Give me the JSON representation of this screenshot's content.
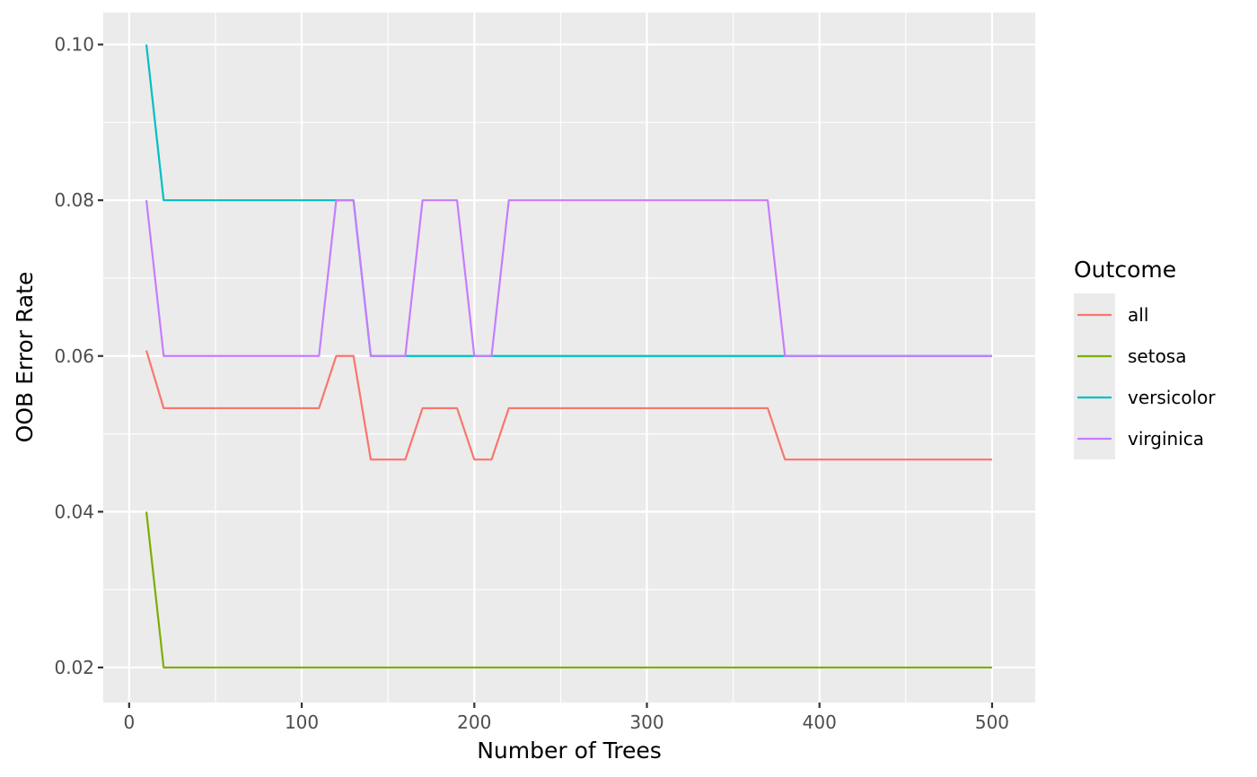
{
  "chart_data": {
    "type": "line",
    "title": "",
    "xlabel": "Number of Trees",
    "ylabel": "OOB Error Rate",
    "xlim": [
      -15,
      525
    ],
    "ylim": [
      0.0155,
      0.1041
    ],
    "x_ticks": [
      0,
      100,
      200,
      300,
      400,
      500
    ],
    "x_tick_labels": [
      "0",
      "100",
      "200",
      "300",
      "400",
      "500"
    ],
    "y_ticks": [
      0.02,
      0.04,
      0.06,
      0.08,
      0.1
    ],
    "y_tick_labels": [
      "0.02",
      "0.04",
      "0.06",
      "0.08",
      "0.10"
    ],
    "grid": true,
    "legend": {
      "title": "Outcome",
      "position": "right"
    },
    "x": [
      10,
      20,
      30,
      40,
      50,
      60,
      70,
      80,
      90,
      100,
      110,
      120,
      130,
      140,
      150,
      160,
      170,
      180,
      190,
      200,
      210,
      220,
      230,
      240,
      250,
      260,
      270,
      280,
      290,
      300,
      310,
      320,
      330,
      340,
      350,
      360,
      370,
      380,
      390,
      400,
      410,
      420,
      430,
      440,
      450,
      460,
      470,
      480,
      490,
      500
    ],
    "series": [
      {
        "name": "all",
        "color": "#F8766D",
        "values": [
          0.0607,
          0.0533,
          0.0533,
          0.0533,
          0.0533,
          0.0533,
          0.0533,
          0.0533,
          0.0533,
          0.0533,
          0.0533,
          0.06,
          0.06,
          0.0467,
          0.0467,
          0.0467,
          0.0533,
          0.0533,
          0.0533,
          0.0467,
          0.0467,
          0.0533,
          0.0533,
          0.0533,
          0.0533,
          0.0533,
          0.0533,
          0.0533,
          0.0533,
          0.0533,
          0.0533,
          0.0533,
          0.0533,
          0.0533,
          0.0533,
          0.0533,
          0.0533,
          0.0467,
          0.0467,
          0.0467,
          0.0467,
          0.0467,
          0.0467,
          0.0467,
          0.0467,
          0.0467,
          0.0467,
          0.0467,
          0.0467,
          0.0467
        ]
      },
      {
        "name": "setosa",
        "color": "#7CAE00",
        "values": [
          0.04,
          0.02,
          0.02,
          0.02,
          0.02,
          0.02,
          0.02,
          0.02,
          0.02,
          0.02,
          0.02,
          0.02,
          0.02,
          0.02,
          0.02,
          0.02,
          0.02,
          0.02,
          0.02,
          0.02,
          0.02,
          0.02,
          0.02,
          0.02,
          0.02,
          0.02,
          0.02,
          0.02,
          0.02,
          0.02,
          0.02,
          0.02,
          0.02,
          0.02,
          0.02,
          0.02,
          0.02,
          0.02,
          0.02,
          0.02,
          0.02,
          0.02,
          0.02,
          0.02,
          0.02,
          0.02,
          0.02,
          0.02,
          0.02,
          0.02
        ]
      },
      {
        "name": "versicolor",
        "color": "#00BFC4",
        "values": [
          0.1,
          0.08,
          0.08,
          0.08,
          0.08,
          0.08,
          0.08,
          0.08,
          0.08,
          0.08,
          0.08,
          0.08,
          0.08,
          0.06,
          0.06,
          0.06,
          0.06,
          0.06,
          0.06,
          0.06,
          0.06,
          0.06,
          0.06,
          0.06,
          0.06,
          0.06,
          0.06,
          0.06,
          0.06,
          0.06,
          0.06,
          0.06,
          0.06,
          0.06,
          0.06,
          0.06,
          0.06,
          0.06,
          0.06,
          0.06,
          0.06,
          0.06,
          0.06,
          0.06,
          0.06,
          0.06,
          0.06,
          0.06,
          0.06,
          0.06
        ]
      },
      {
        "name": "virginica",
        "color": "#C77CFF",
        "values": [
          0.08,
          0.06,
          0.06,
          0.06,
          0.06,
          0.06,
          0.06,
          0.06,
          0.06,
          0.06,
          0.06,
          0.08,
          0.08,
          0.06,
          0.06,
          0.06,
          0.08,
          0.08,
          0.08,
          0.06,
          0.06,
          0.08,
          0.08,
          0.08,
          0.08,
          0.08,
          0.08,
          0.08,
          0.08,
          0.08,
          0.08,
          0.08,
          0.08,
          0.08,
          0.08,
          0.08,
          0.08,
          0.06,
          0.06,
          0.06,
          0.06,
          0.06,
          0.06,
          0.06,
          0.06,
          0.06,
          0.06,
          0.06,
          0.06,
          0.06
        ]
      }
    ]
  }
}
